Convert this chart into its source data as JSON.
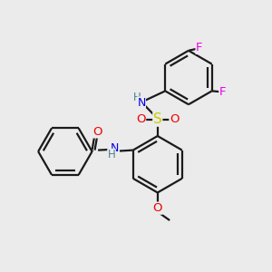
{
  "bg": "#ebebeb",
  "bond_color": "#1a1a1a",
  "lw": 1.6,
  "atom_colors": {
    "N": "#0000ee",
    "O": "#ee0000",
    "S": "#cccc00",
    "F": "#ee00ee",
    "H": "#4a8090",
    "C": "#1a1a1a"
  },
  "figsize": [
    3.0,
    3.0
  ],
  "dpi": 100,
  "xlim": [
    -4.8,
    5.2
  ],
  "ylim": [
    -4.8,
    4.8
  ]
}
